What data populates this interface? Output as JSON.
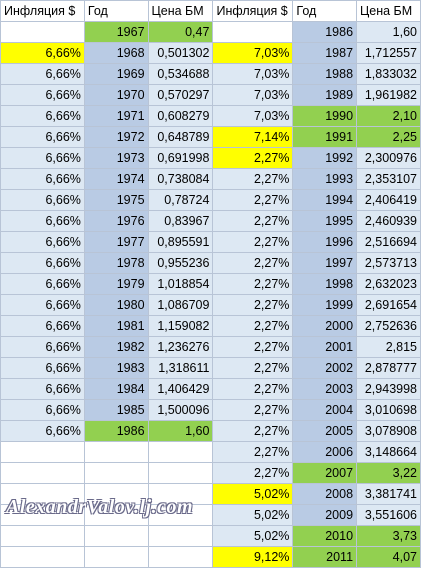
{
  "headers": [
    "Инфляция $",
    "Год",
    "Цена БМ",
    "Инфляция $",
    "Год",
    "Цена БМ"
  ],
  "rows": [
    {
      "a": "",
      "b": "1967",
      "c": "0,47",
      "d": "",
      "e": "1986",
      "f": "1,60",
      "ca": "w",
      "cb": "g",
      "cc": "g",
      "cd": "w",
      "ce": "m",
      "cf": "l"
    },
    {
      "a": "6,66%",
      "b": "1968",
      "c": "0,501302",
      "d": "7,03%",
      "e": "1987",
      "f": "1,712557",
      "ca": "y",
      "cb": "m",
      "cc": "l",
      "cd": "y",
      "ce": "m",
      "cf": "l"
    },
    {
      "a": "6,66%",
      "b": "1969",
      "c": "0,534688",
      "d": "7,03%",
      "e": "1988",
      "f": "1,833032",
      "ca": "l",
      "cb": "m",
      "cc": "l",
      "cd": "l",
      "ce": "m",
      "cf": "l"
    },
    {
      "a": "6,66%",
      "b": "1970",
      "c": "0,570297",
      "d": "7,03%",
      "e": "1989",
      "f": "1,961982",
      "ca": "l",
      "cb": "m",
      "cc": "l",
      "cd": "l",
      "ce": "m",
      "cf": "l"
    },
    {
      "a": "6,66%",
      "b": "1971",
      "c": "0,608279",
      "d": "7,03%",
      "e": "1990",
      "f": "2,10",
      "ca": "l",
      "cb": "m",
      "cc": "l",
      "cd": "l",
      "ce": "g",
      "cf": "g"
    },
    {
      "a": "6,66%",
      "b": "1972",
      "c": "0,648789",
      "d": "7,14%",
      "e": "1991",
      "f": "2,25",
      "ca": "l",
      "cb": "m",
      "cc": "l",
      "cd": "y",
      "ce": "g",
      "cf": "g"
    },
    {
      "a": "6,66%",
      "b": "1973",
      "c": "0,691998",
      "d": "2,27%",
      "e": "1992",
      "f": "2,300976",
      "ca": "l",
      "cb": "m",
      "cc": "l",
      "cd": "y",
      "ce": "m",
      "cf": "l"
    },
    {
      "a": "6,66%",
      "b": "1974",
      "c": "0,738084",
      "d": "2,27%",
      "e": "1993",
      "f": "2,353107",
      "ca": "l",
      "cb": "m",
      "cc": "l",
      "cd": "l",
      "ce": "m",
      "cf": "l"
    },
    {
      "a": "6,66%",
      "b": "1975",
      "c": "0,78724",
      "d": "2,27%",
      "e": "1994",
      "f": "2,406419",
      "ca": "l",
      "cb": "m",
      "cc": "l",
      "cd": "l",
      "ce": "m",
      "cf": "l"
    },
    {
      "a": "6,66%",
      "b": "1976",
      "c": "0,83967",
      "d": "2,27%",
      "e": "1995",
      "f": "2,460939",
      "ca": "l",
      "cb": "m",
      "cc": "l",
      "cd": "l",
      "ce": "m",
      "cf": "l"
    },
    {
      "a": "6,66%",
      "b": "1977",
      "c": "0,895591",
      "d": "2,27%",
      "e": "1996",
      "f": "2,516694",
      "ca": "l",
      "cb": "m",
      "cc": "l",
      "cd": "l",
      "ce": "m",
      "cf": "l"
    },
    {
      "a": "6,66%",
      "b": "1978",
      "c": "0,955236",
      "d": "2,27%",
      "e": "1997",
      "f": "2,573713",
      "ca": "l",
      "cb": "m",
      "cc": "l",
      "cd": "l",
      "ce": "m",
      "cf": "l"
    },
    {
      "a": "6,66%",
      "b": "1979",
      "c": "1,018854",
      "d": "2,27%",
      "e": "1998",
      "f": "2,632023",
      "ca": "l",
      "cb": "m",
      "cc": "l",
      "cd": "l",
      "ce": "m",
      "cf": "l"
    },
    {
      "a": "6,66%",
      "b": "1980",
      "c": "1,086709",
      "d": "2,27%",
      "e": "1999",
      "f": "2,691654",
      "ca": "l",
      "cb": "m",
      "cc": "l",
      "cd": "l",
      "ce": "m",
      "cf": "l"
    },
    {
      "a": "6,66%",
      "b": "1981",
      "c": "1,159082",
      "d": "2,27%",
      "e": "2000",
      "f": "2,752636",
      "ca": "l",
      "cb": "m",
      "cc": "l",
      "cd": "l",
      "ce": "m",
      "cf": "l"
    },
    {
      "a": "6,66%",
      "b": "1982",
      "c": "1,236276",
      "d": "2,27%",
      "e": "2001",
      "f": "2,815",
      "ca": "l",
      "cb": "m",
      "cc": "l",
      "cd": "l",
      "ce": "m",
      "cf": "l"
    },
    {
      "a": "6,66%",
      "b": "1983",
      "c": "1,318611",
      "d": "2,27%",
      "e": "2002",
      "f": "2,878777",
      "ca": "l",
      "cb": "m",
      "cc": "l",
      "cd": "l",
      "ce": "m",
      "cf": "l"
    },
    {
      "a": "6,66%",
      "b": "1984",
      "c": "1,406429",
      "d": "2,27%",
      "e": "2003",
      "f": "2,943998",
      "ca": "l",
      "cb": "m",
      "cc": "l",
      "cd": "l",
      "ce": "m",
      "cf": "l"
    },
    {
      "a": "6,66%",
      "b": "1985",
      "c": "1,500096",
      "d": "2,27%",
      "e": "2004",
      "f": "3,010698",
      "ca": "l",
      "cb": "m",
      "cc": "l",
      "cd": "l",
      "ce": "m",
      "cf": "l"
    },
    {
      "a": "6,66%",
      "b": "1986",
      "c": "1,60",
      "d": "2,27%",
      "e": "2005",
      "f": "3,078908",
      "ca": "l",
      "cb": "g",
      "cc": "g",
      "cd": "l",
      "ce": "m",
      "cf": "l"
    },
    {
      "a": "",
      "b": "",
      "c": "",
      "d": "2,27%",
      "e": "2006",
      "f": "3,148664",
      "ca": "w",
      "cb": "w",
      "cc": "w",
      "cd": "l",
      "ce": "m",
      "cf": "l"
    },
    {
      "a": "",
      "b": "",
      "c": "",
      "d": "2,27%",
      "e": "2007",
      "f": "3,22",
      "ca": "w",
      "cb": "w",
      "cc": "w",
      "cd": "l",
      "ce": "g",
      "cf": "g"
    },
    {
      "a": "",
      "b": "",
      "c": "",
      "d": "5,02%",
      "e": "2008",
      "f": "3,381741",
      "ca": "w",
      "cb": "w",
      "cc": "w",
      "cd": "y",
      "ce": "m",
      "cf": "l"
    },
    {
      "a": "",
      "b": "",
      "c": "",
      "d": "5,02%",
      "e": "2009",
      "f": "3,551606",
      "ca": "w",
      "cb": "w",
      "cc": "w",
      "cd": "l",
      "ce": "m",
      "cf": "l"
    },
    {
      "a": "",
      "b": "",
      "c": "",
      "d": "5,02%",
      "e": "2010",
      "f": "3,73",
      "ca": "w",
      "cb": "w",
      "cc": "w",
      "cd": "l",
      "ce": "g",
      "cf": "g"
    },
    {
      "a": "",
      "b": "",
      "c": "",
      "d": "9,12%",
      "e": "2011",
      "f": "4,07",
      "ca": "w",
      "cb": "w",
      "cc": "w",
      "cd": "y",
      "ce": "g",
      "cf": "g"
    }
  ],
  "colors": {
    "light": "#dde8f3",
    "mid": "#b9cbe4",
    "yellow": "#ffff00",
    "green": "#92d050",
    "white": "#ffffff"
  },
  "watermark": "AlexandrValov.lj.com"
}
